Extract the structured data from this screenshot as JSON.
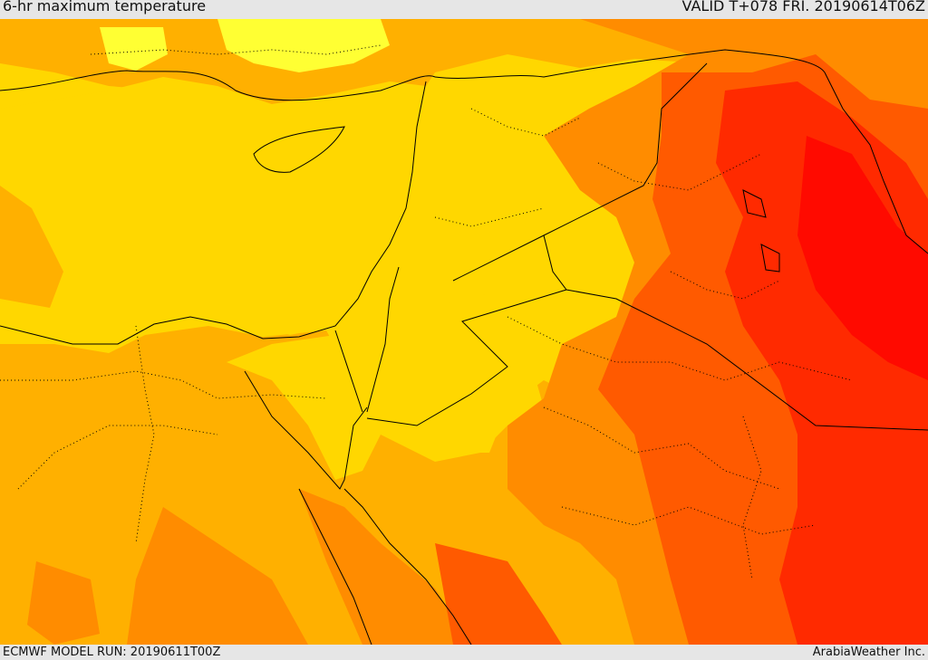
{
  "header": {
    "title": "6-hr maximum temperature",
    "valid": "VALID T+078 FRI. 20190614T06Z"
  },
  "footer": {
    "model_run": "ECMWF MODEL RUN: 20190611T00Z",
    "credit": "ArabiaWeather Inc."
  },
  "map": {
    "field": "6-hr maximum temperature",
    "colors": {
      "light_yellow": "#ffff33",
      "yellow": "#ffd700",
      "orange_light": "#ffb000",
      "orange": "#ff8c00",
      "orange_red": "#ff5a00",
      "red": "#ff2a00",
      "deep_red": "#ff0a00",
      "borders": "#000000"
    }
  }
}
